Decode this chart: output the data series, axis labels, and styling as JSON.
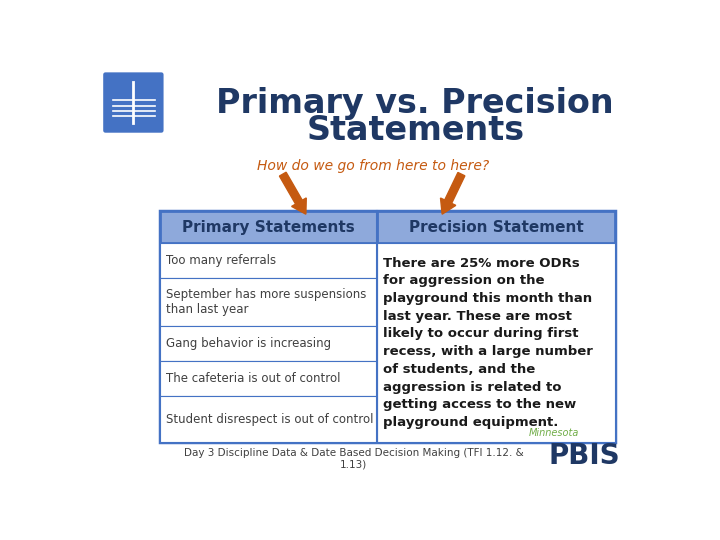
{
  "title_line1": "Primary vs. Precision",
  "title_line2": "Statements",
  "title_color": "#1f3864",
  "subtitle": "How do we go from here to here?",
  "subtitle_color": "#c55a11",
  "header_left": "Primary Statements",
  "header_right": "Precision Statement",
  "header_bg": "#8ea9db",
  "header_text_color": "#1f3864",
  "table_border_color": "#4472c4",
  "left_rows": [
    "Too many referrals",
    "September has more suspensions\nthan last year",
    "Gang behavior is increasing",
    "The cafeteria is out of control",
    "Student disrespect is out of control"
  ],
  "right_text_lines": [
    "There are 25% more ODRs",
    "for aggression on the",
    "playground this month than",
    "last year. These are most",
    "likely to occur during first",
    "recess, with a large number",
    "of students, and the",
    "aggression is related to",
    "getting access to the new",
    "playground equipment."
  ],
  "footer_text": "Day 3 Discipline Data & Date Based Decision Making (TFI 1.12. &\n1.13)",
  "background_color": "#ffffff",
  "arrow_color": "#c55a11",
  "book_icon_bg": "#4472c4",
  "row_text_color": "#404040",
  "right_text_color": "#1a1a1a",
  "minnesota_color": "#70ad47",
  "pbis_color": "#1f3864",
  "footer_color": "#404040"
}
